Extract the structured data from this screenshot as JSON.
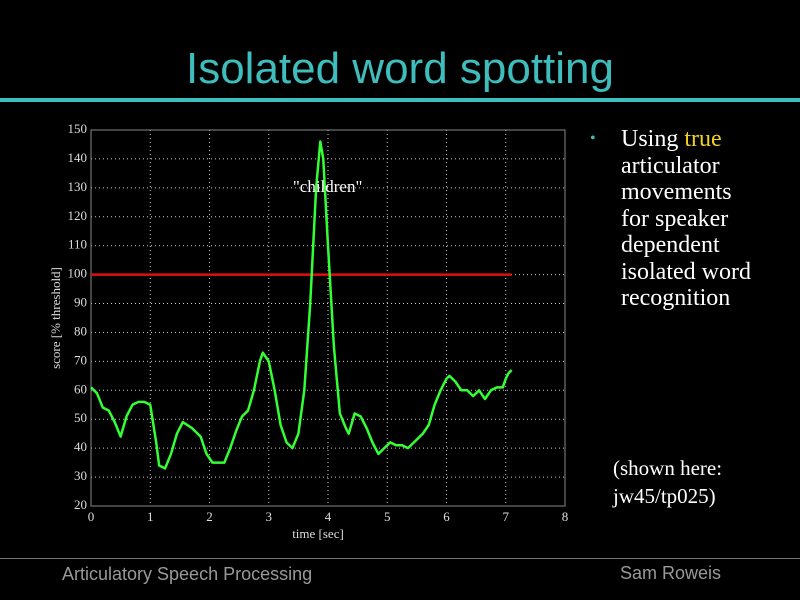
{
  "slide": {
    "title": "Isolated word spotting",
    "bullet": {
      "marker": "•",
      "parts": [
        "Using ",
        "true",
        " articulator movements for speaker dependent isolated word recognition"
      ]
    },
    "note": [
      "(shown here:",
      "jw45/tp025)"
    ],
    "footer_left": "Articulatory Speech Processing",
    "footer_right": "Sam Roweis"
  },
  "chart_data": {
    "type": "line",
    "xlabel": "time [sec]",
    "ylabel": "score  [% threshold]",
    "annotation": {
      "text": "\"children\"",
      "x": 4.5,
      "y": 130
    },
    "x": [
      0,
      0.1,
      0.2,
      0.3,
      0.4,
      0.5,
      0.6,
      0.7,
      0.8,
      0.9,
      1.0,
      1.1,
      1.15,
      1.25,
      1.35,
      1.45,
      1.55,
      1.7,
      1.85,
      1.95,
      2.05,
      2.15,
      2.25,
      2.35,
      2.45,
      2.55,
      2.65,
      2.75,
      2.85,
      2.9,
      3.0,
      3.1,
      3.2,
      3.3,
      3.4,
      3.5,
      3.6,
      3.7,
      3.8,
      3.87,
      3.92,
      4.0,
      4.1,
      4.2,
      4.3,
      4.35,
      4.45,
      4.55,
      4.65,
      4.75,
      4.85,
      4.95,
      5.05,
      5.15,
      5.25,
      5.35,
      5.45,
      5.6,
      5.7,
      5.8,
      5.9,
      6.0,
      6.05,
      6.15,
      6.25,
      6.35,
      6.45,
      6.55,
      6.65,
      6.75,
      6.85,
      6.95,
      7.0,
      7.05,
      7.1
    ],
    "series": [
      {
        "color": "#33ff33",
        "values": [
          61,
          59,
          54,
          53,
          49,
          44,
          51,
          55,
          56,
          56,
          55,
          42,
          34,
          33,
          38,
          45,
          49,
          47,
          44,
          38,
          35,
          35,
          35,
          40,
          46,
          51,
          53,
          60,
          70,
          73,
          70,
          60,
          48,
          42,
          40,
          45,
          60,
          90,
          130,
          146,
          140,
          110,
          75,
          52,
          47,
          45,
          52,
          51,
          47,
          42,
          38,
          40,
          42,
          41,
          41,
          40,
          42,
          45,
          48,
          55,
          60,
          64,
          65,
          63,
          60,
          60,
          58,
          60,
          57,
          60,
          61,
          61,
          64,
          66,
          67
        ]
      }
    ],
    "hlines": [
      {
        "y": 100,
        "x": [
          0,
          7.1
        ],
        "color": "#e01010"
      }
    ],
    "xlim": [
      0,
      8
    ],
    "xticks": [
      0,
      1,
      2,
      3,
      4,
      5,
      6,
      7,
      8
    ],
    "ylim": [
      20,
      150
    ],
    "yticks": [
      20,
      30,
      40,
      50,
      60,
      70,
      80,
      90,
      100,
      110,
      120,
      130,
      140,
      150
    ],
    "grid": true
  }
}
